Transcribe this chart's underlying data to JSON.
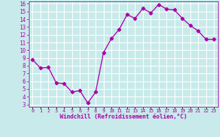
{
  "x": [
    0,
    1,
    2,
    3,
    4,
    5,
    6,
    7,
    8,
    9,
    10,
    11,
    12,
    13,
    14,
    15,
    16,
    17,
    18,
    19,
    20,
    21,
    22,
    23
  ],
  "y": [
    8.8,
    7.7,
    7.8,
    5.8,
    5.7,
    4.6,
    4.8,
    3.2,
    4.6,
    9.7,
    11.5,
    12.7,
    14.6,
    14.1,
    15.4,
    14.8,
    15.9,
    15.3,
    15.2,
    14.1,
    13.2,
    12.5,
    11.4,
    11.4
  ],
  "line_color": "#aa00aa",
  "marker": "D",
  "marker_size": 2.5,
  "bg_color": "#c8eaea",
  "grid_color": "#b0d8d8",
  "xlabel": "Windchill (Refroidissement éolien,°C)",
  "xlabel_color": "#aa00aa",
  "tick_color": "#aa00aa",
  "ylim": [
    3,
    16
  ],
  "xlim": [
    -0.5,
    23.5
  ],
  "yticks": [
    3,
    4,
    5,
    6,
    7,
    8,
    9,
    10,
    11,
    12,
    13,
    14,
    15,
    16
  ],
  "xtick_labels": [
    "0",
    "1",
    "2",
    "3",
    "4",
    "5",
    "6",
    "7",
    "8",
    "9",
    "10",
    "11",
    "12",
    "13",
    "14",
    "15",
    "16",
    "17",
    "18",
    "19",
    "20",
    "21",
    "22",
    "23"
  ]
}
